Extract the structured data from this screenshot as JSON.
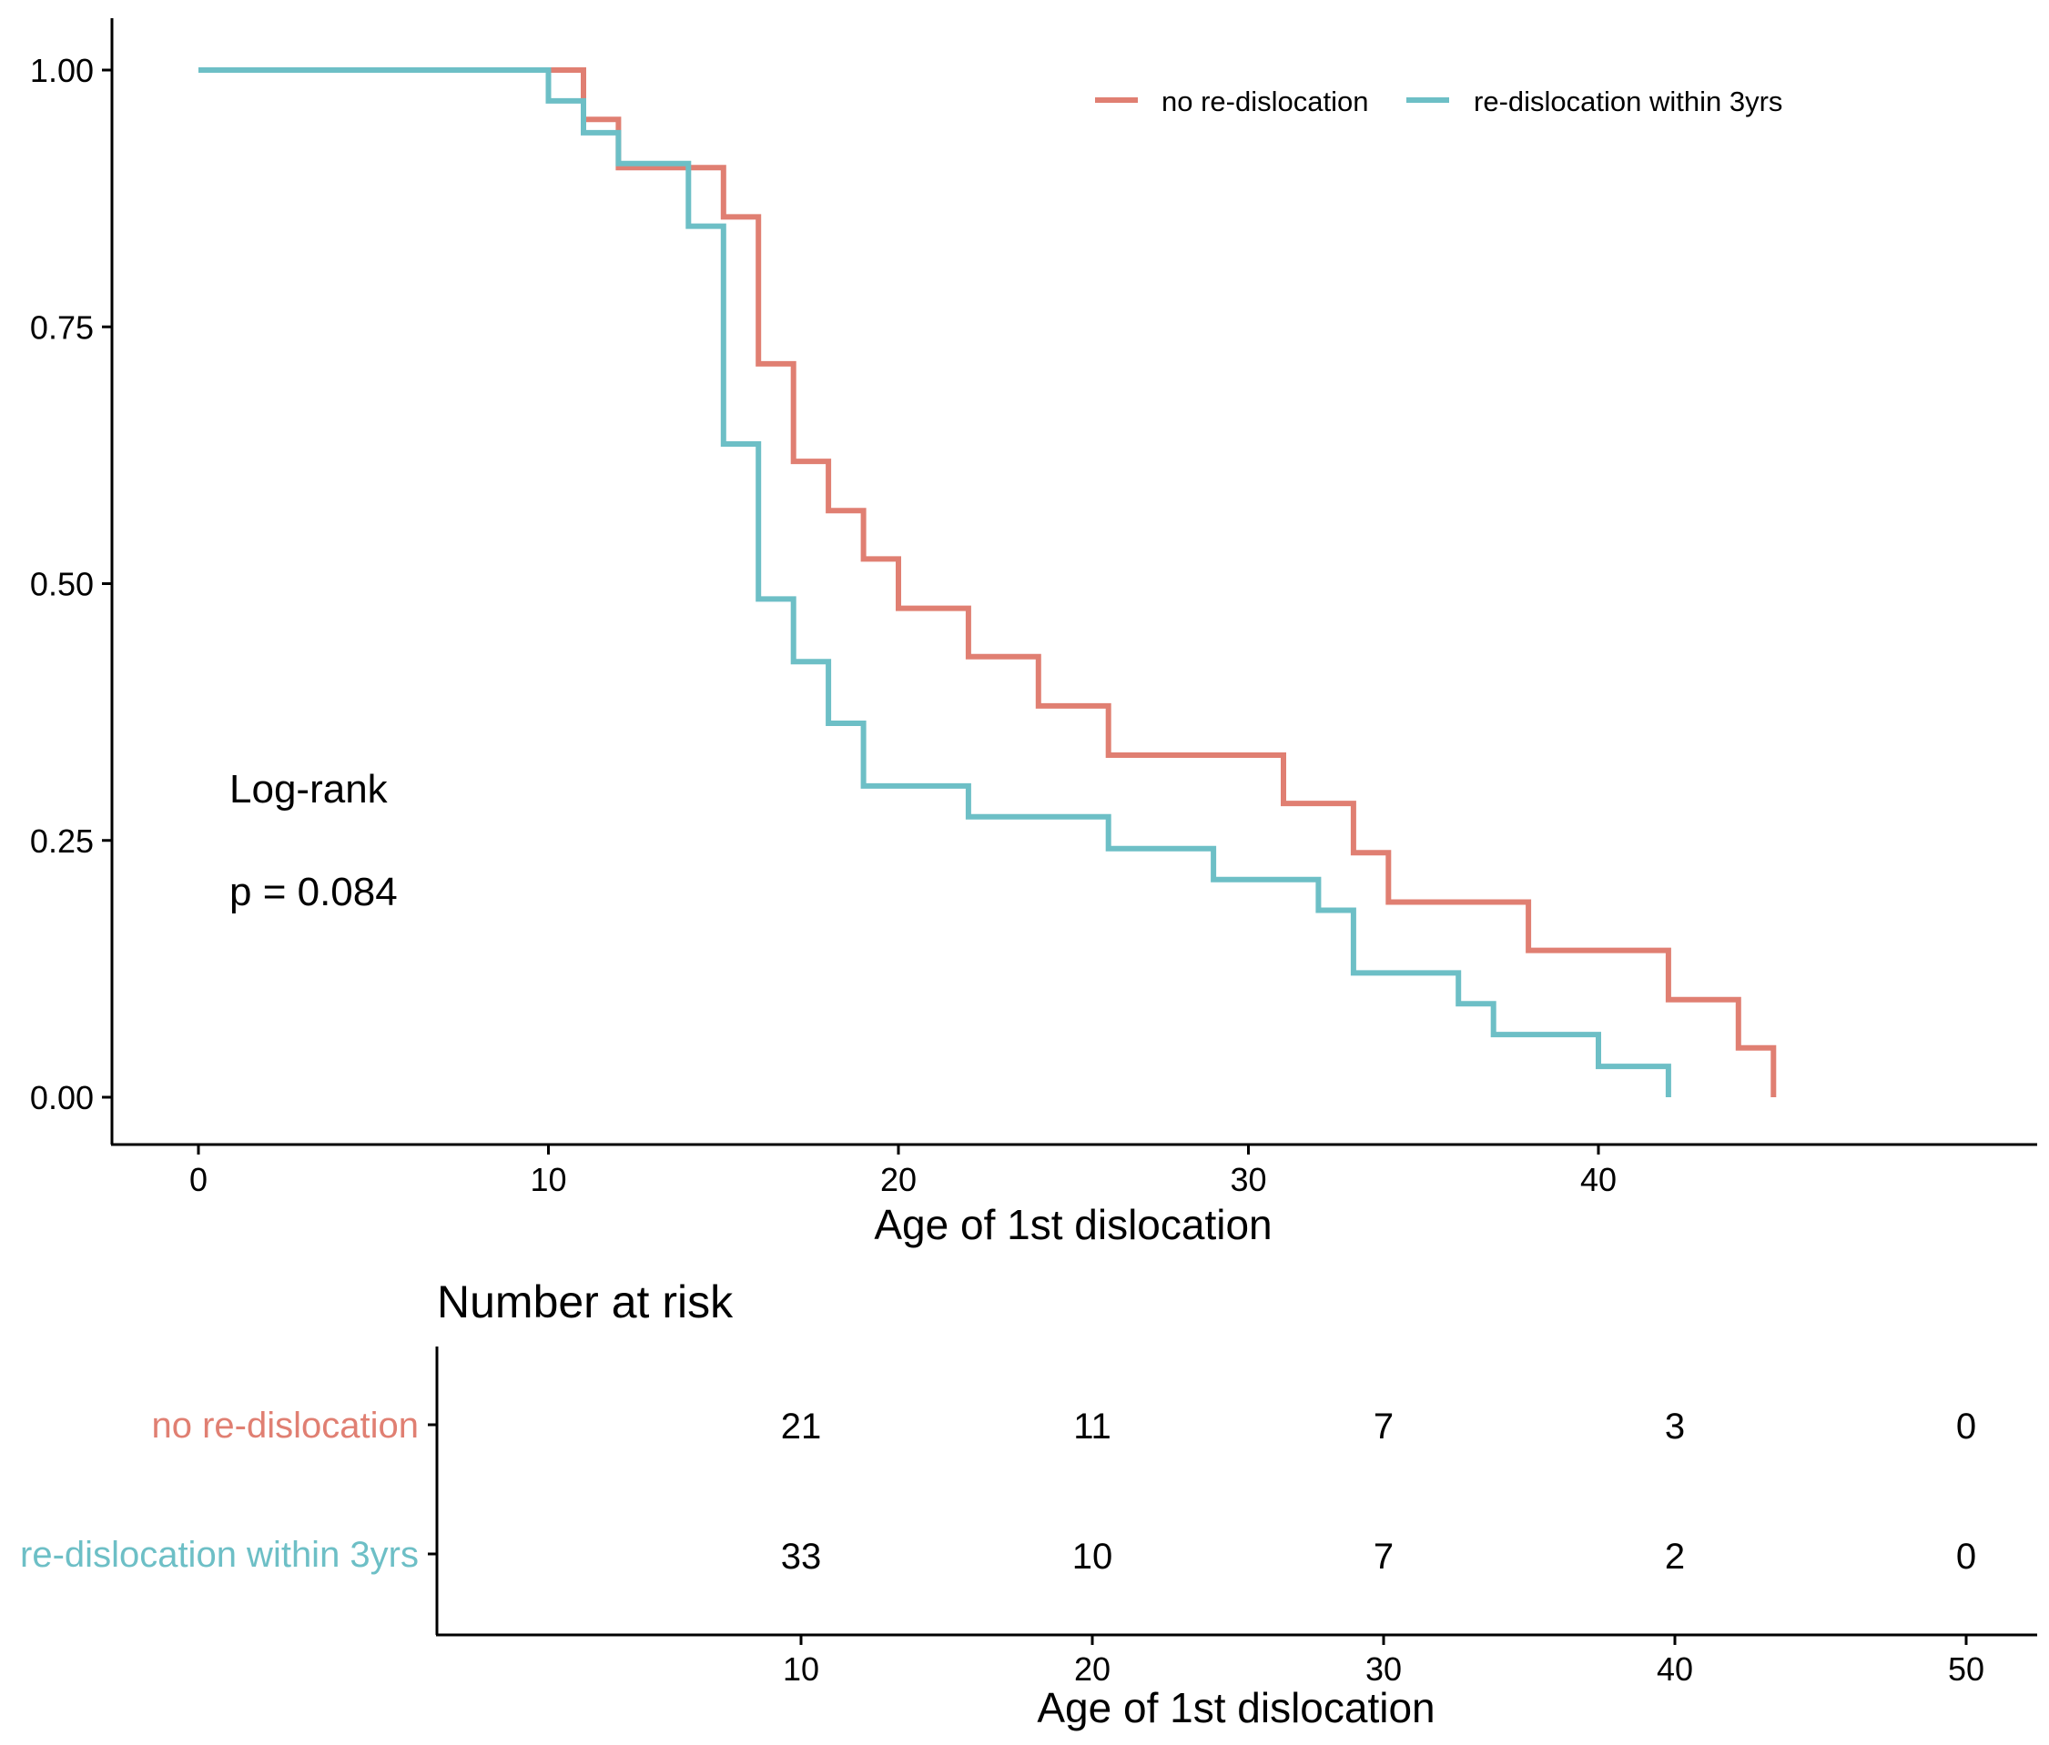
{
  "chart_data": [
    {
      "type": "line",
      "step": "post",
      "xlabel": "Age of 1st dislocation",
      "ylabel": "",
      "xlim": [
        -2.5,
        52.5
      ],
      "ylim": [
        -0.05,
        1.05
      ],
      "xticks": [
        "0",
        "10",
        "20",
        "30",
        "40"
      ],
      "yticks": [
        "0.00",
        "0.25",
        "0.50",
        "0.75",
        "1.00"
      ],
      "grid": false,
      "legend": {
        "position": "top-right",
        "entries": [
          "no re-dislocation",
          "re-dislocation within 3yrs"
        ]
      },
      "annotations": [
        "Log-rank",
        "p = 0.084"
      ],
      "series": [
        {
          "name": "no re-dislocation",
          "color": "#E07F72",
          "x": [
            0,
            10,
            11,
            12,
            15,
            16,
            17,
            18,
            19,
            20,
            22,
            24,
            26,
            31,
            33,
            34,
            38,
            42,
            44,
            45
          ],
          "y": [
            1.0,
            1.0,
            0.952,
            0.905,
            0.857,
            0.714,
            0.619,
            0.571,
            0.524,
            0.476,
            0.429,
            0.381,
            0.333,
            0.286,
            0.238,
            0.19,
            0.143,
            0.095,
            0.048,
            0.0
          ]
        },
        {
          "name": "re-dislocation within 3yrs",
          "color": "#6DBFC6",
          "x": [
            0,
            10,
            11,
            12,
            14,
            15,
            16,
            17,
            18,
            19,
            22,
            26,
            29,
            32,
            33,
            36,
            37,
            40,
            42
          ],
          "y": [
            1.0,
            0.97,
            0.939,
            0.909,
            0.848,
            0.636,
            0.485,
            0.424,
            0.364,
            0.303,
            0.273,
            0.242,
            0.212,
            0.182,
            0.121,
            0.091,
            0.061,
            0.03,
            0.0
          ]
        }
      ]
    },
    {
      "type": "table",
      "title": "Number at risk",
      "xlabel": "Age of 1st dislocation",
      "xticks": [
        "10",
        "20",
        "30",
        "40",
        "50"
      ],
      "rows": [
        {
          "name": "no re-dislocation",
          "color": "#E07F72",
          "values": [
            "21",
            "11",
            "7",
            "3",
            "0"
          ]
        },
        {
          "name": "re-dislocation within 3yrs",
          "color": "#6DBFC6",
          "values": [
            "33",
            "10",
            "7",
            "2",
            "0"
          ]
        }
      ]
    }
  ]
}
